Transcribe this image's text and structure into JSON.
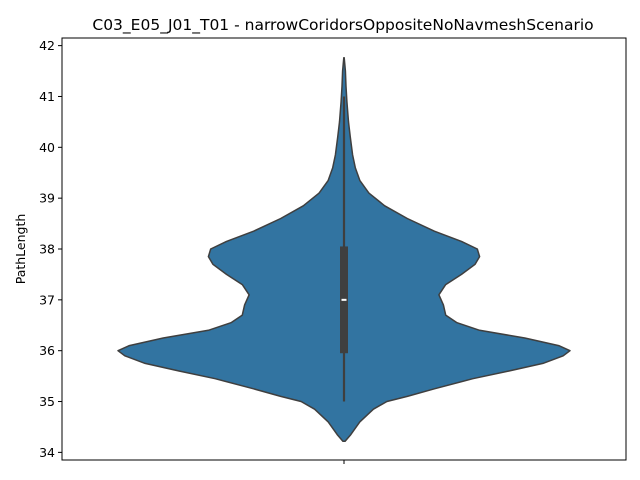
{
  "chart_data": {
    "type": "violin",
    "title": "C03_E05_J01_T01 - narrowCoridorsOppositeNoNavmeshScenario",
    "xlabel": "",
    "ylabel": "PathLength",
    "ylim": [
      33.85,
      42.15
    ],
    "yticks": [
      34,
      35,
      36,
      37,
      38,
      39,
      40,
      41,
      42
    ],
    "categories": [
      ""
    ],
    "grid": false,
    "fill_color": "#3274a1",
    "edge_color": "#3f3f3f",
    "violin": {
      "density_profile": [
        [
          34.22,
          0.005
        ],
        [
          34.35,
          0.03
        ],
        [
          34.6,
          0.07
        ],
        [
          34.85,
          0.13
        ],
        [
          35.0,
          0.19
        ],
        [
          35.1,
          0.28
        ],
        [
          35.25,
          0.4
        ],
        [
          35.45,
          0.57
        ],
        [
          35.6,
          0.73
        ],
        [
          35.75,
          0.88
        ],
        [
          35.9,
          0.97
        ],
        [
          36.0,
          1.0
        ],
        [
          36.1,
          0.95
        ],
        [
          36.25,
          0.8
        ],
        [
          36.4,
          0.6
        ],
        [
          36.55,
          0.5
        ],
        [
          36.7,
          0.45
        ],
        [
          36.9,
          0.44
        ],
        [
          37.1,
          0.42
        ],
        [
          37.3,
          0.45
        ],
        [
          37.5,
          0.52
        ],
        [
          37.7,
          0.58
        ],
        [
          37.85,
          0.6
        ],
        [
          38.0,
          0.59
        ],
        [
          38.15,
          0.52
        ],
        [
          38.35,
          0.4
        ],
        [
          38.6,
          0.28
        ],
        [
          38.85,
          0.18
        ],
        [
          39.1,
          0.11
        ],
        [
          39.35,
          0.07
        ],
        [
          39.6,
          0.05
        ],
        [
          39.85,
          0.038
        ],
        [
          40.2,
          0.028
        ],
        [
          40.5,
          0.02
        ],
        [
          40.9,
          0.013
        ],
        [
          41.2,
          0.009
        ],
        [
          41.5,
          0.006
        ],
        [
          41.76,
          0.001
        ]
      ],
      "median": 37.0,
      "q1": 35.95,
      "q3": 38.05,
      "whisker_low": 35.0,
      "whisker_high": 41.0
    }
  }
}
